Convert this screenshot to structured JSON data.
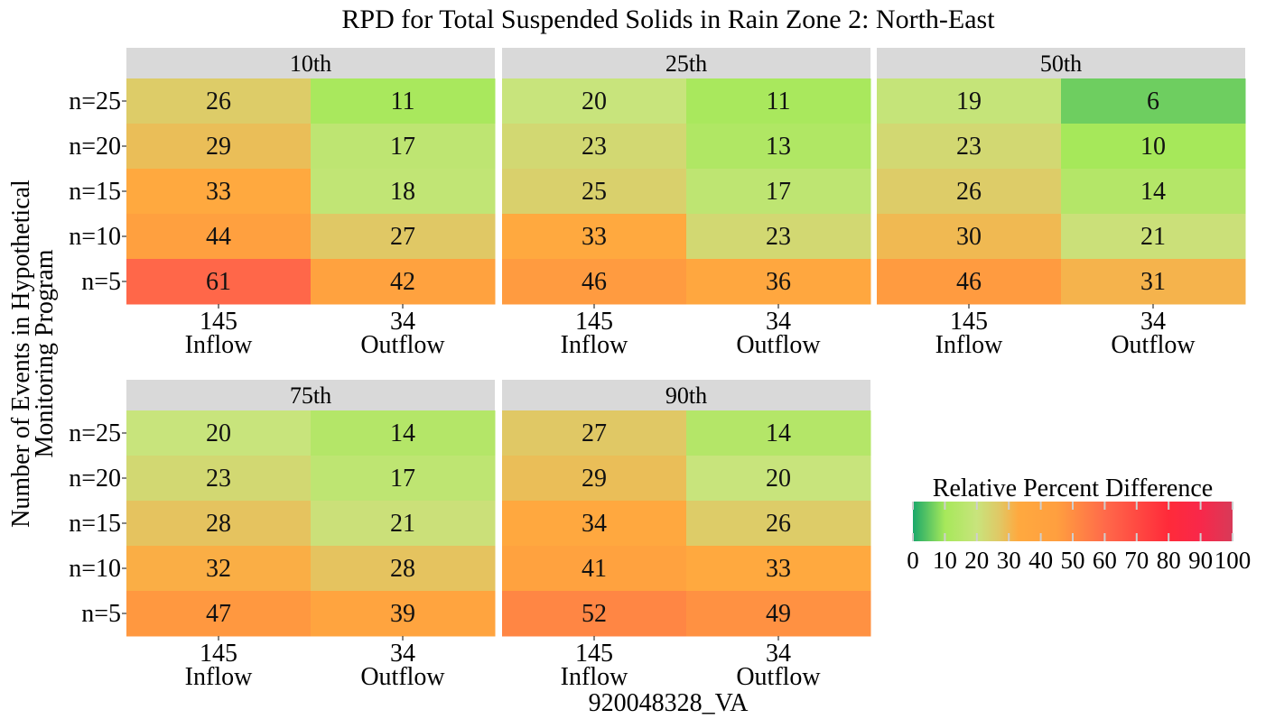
{
  "chart_data": {
    "type": "heatmap",
    "title": "RPD for Total Suspended Solids in Rain Zone 2: North-East",
    "xlabel": "920048328_VA",
    "ylabel": "Number of Events in Hypothetical Monitoring Program",
    "ylabel_lines": [
      "Number of Events in Hypothetical",
      "Monitoring Program"
    ],
    "x_categories": [
      {
        "count": "145",
        "label": "Inflow"
      },
      {
        "count": "34",
        "label": "Outflow"
      }
    ],
    "y_categories": [
      "n=25",
      "n=20",
      "n=15",
      "n=10",
      "n=5"
    ],
    "facets": [
      {
        "label": "10th",
        "values": [
          [
            26,
            11
          ],
          [
            29,
            17
          ],
          [
            33,
            18
          ],
          [
            44,
            27
          ],
          [
            61,
            42
          ]
        ]
      },
      {
        "label": "25th",
        "values": [
          [
            20,
            11
          ],
          [
            23,
            13
          ],
          [
            25,
            17
          ],
          [
            33,
            23
          ],
          [
            46,
            36
          ]
        ]
      },
      {
        "label": "50th",
        "values": [
          [
            19,
            6
          ],
          [
            23,
            10
          ],
          [
            26,
            14
          ],
          [
            30,
            21
          ],
          [
            46,
            31
          ]
        ]
      },
      {
        "label": "75th",
        "values": [
          [
            20,
            14
          ],
          [
            23,
            17
          ],
          [
            28,
            21
          ],
          [
            32,
            28
          ],
          [
            47,
            39
          ]
        ]
      },
      {
        "label": "90th",
        "values": [
          [
            27,
            14
          ],
          [
            29,
            20
          ],
          [
            34,
            26
          ],
          [
            41,
            33
          ],
          [
            52,
            49
          ]
        ]
      }
    ],
    "legend": {
      "title": "Relative Percent Difference",
      "ticks": [
        0,
        10,
        20,
        30,
        40,
        50,
        60,
        70,
        80,
        90,
        100
      ],
      "range": [
        0,
        100
      ],
      "position": "right"
    },
    "color_stops": [
      {
        "v": 0,
        "c": "#1aa86a"
      },
      {
        "v": 10,
        "c": "#a6e85a"
      },
      {
        "v": 20,
        "c": "#c8e47c"
      },
      {
        "v": 27,
        "c": "#e0c865"
      },
      {
        "v": 33,
        "c": "#ffa93f"
      },
      {
        "v": 45,
        "c": "#ff9f3f"
      },
      {
        "v": 60,
        "c": "#ff6a4a"
      },
      {
        "v": 80,
        "c": "#ff2a3a"
      },
      {
        "v": 90,
        "c": "#f8284a"
      },
      {
        "v": 100,
        "c": "#d83a58"
      }
    ],
    "strip_color": "#d9d9d9"
  }
}
